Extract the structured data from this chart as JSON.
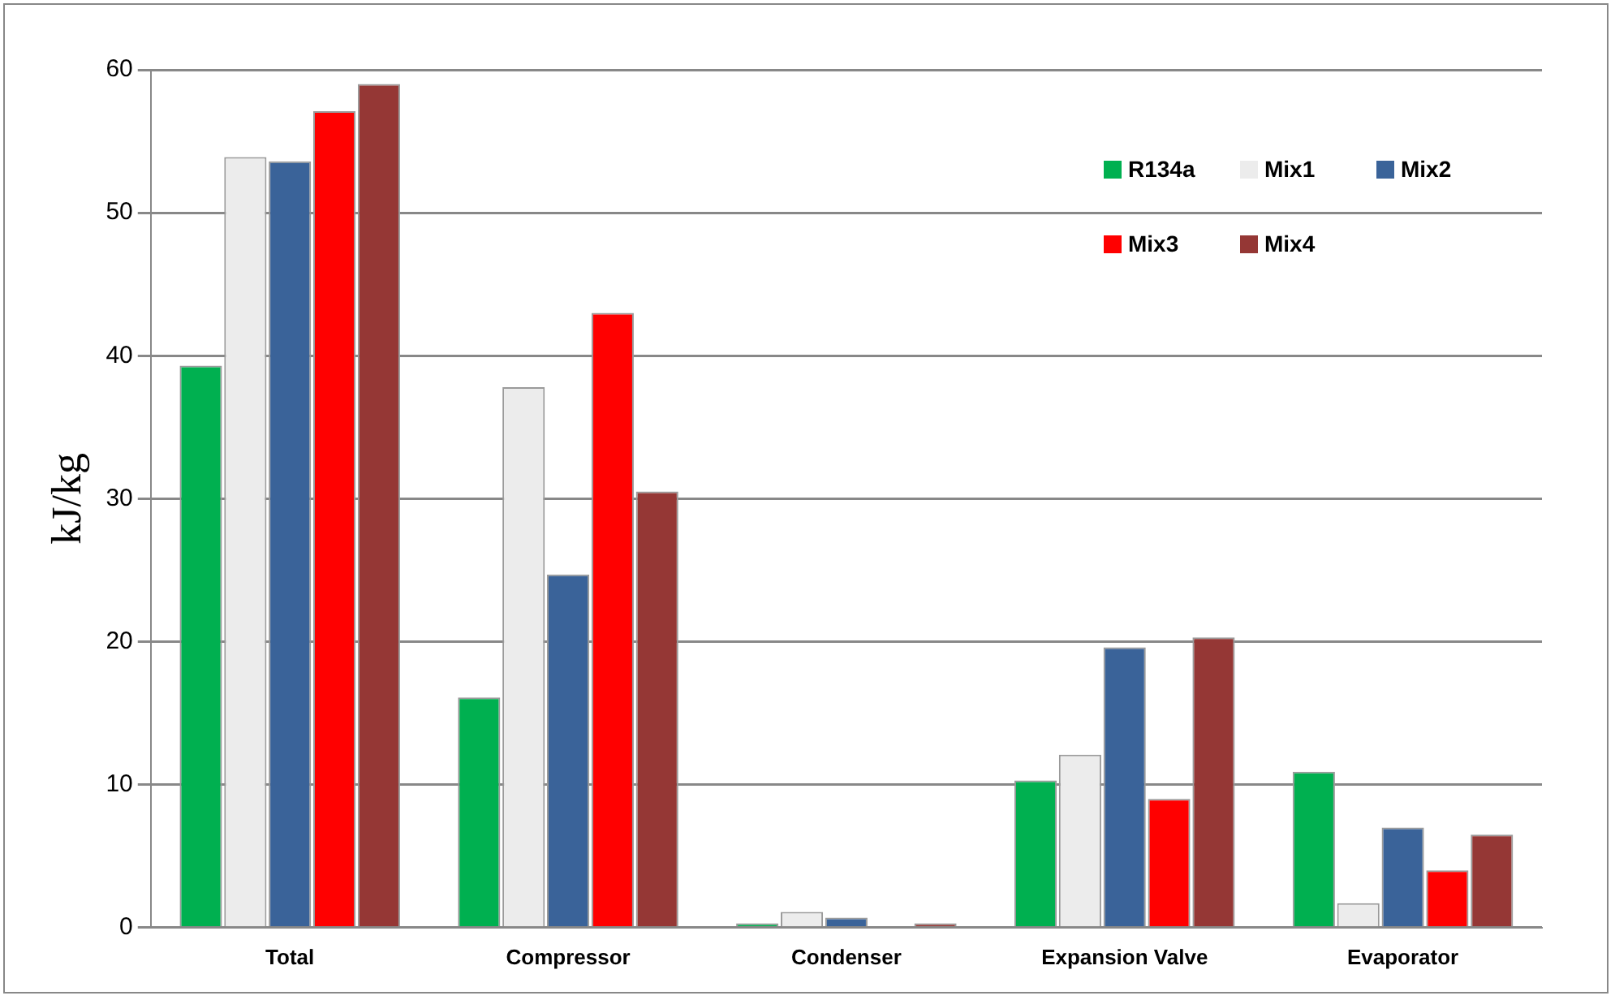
{
  "chart_data": {
    "type": "bar",
    "ylabel": "kJ/kg",
    "categories": [
      "Total",
      "Compressor",
      "Condenser",
      "Expansion Valve",
      "Evaporator"
    ],
    "series": [
      {
        "name": "R134a",
        "color": "#00b050",
        "values": [
          39.3,
          16.1,
          0.3,
          10.3,
          10.9
        ]
      },
      {
        "name": "Mix1",
        "color": "#ececec",
        "values": [
          53.9,
          37.8,
          1.1,
          12.1,
          1.7
        ]
      },
      {
        "name": "Mix2",
        "color": "#3a6399",
        "values": [
          53.6,
          24.7,
          0.7,
          19.6,
          7.0
        ]
      },
      {
        "name": "Mix3",
        "color": "#ff0000",
        "values": [
          57.1,
          43.0,
          0,
          9.0,
          4.0
        ]
      },
      {
        "name": "Mix4",
        "color": "#953735",
        "values": [
          59.0,
          30.5,
          0.3,
          20.3,
          6.5
        ]
      }
    ],
    "ylim": [
      0,
      60
    ],
    "yticks": [
      0,
      10,
      20,
      30,
      40,
      50,
      60
    ],
    "grid": "y",
    "legend": "top right"
  }
}
